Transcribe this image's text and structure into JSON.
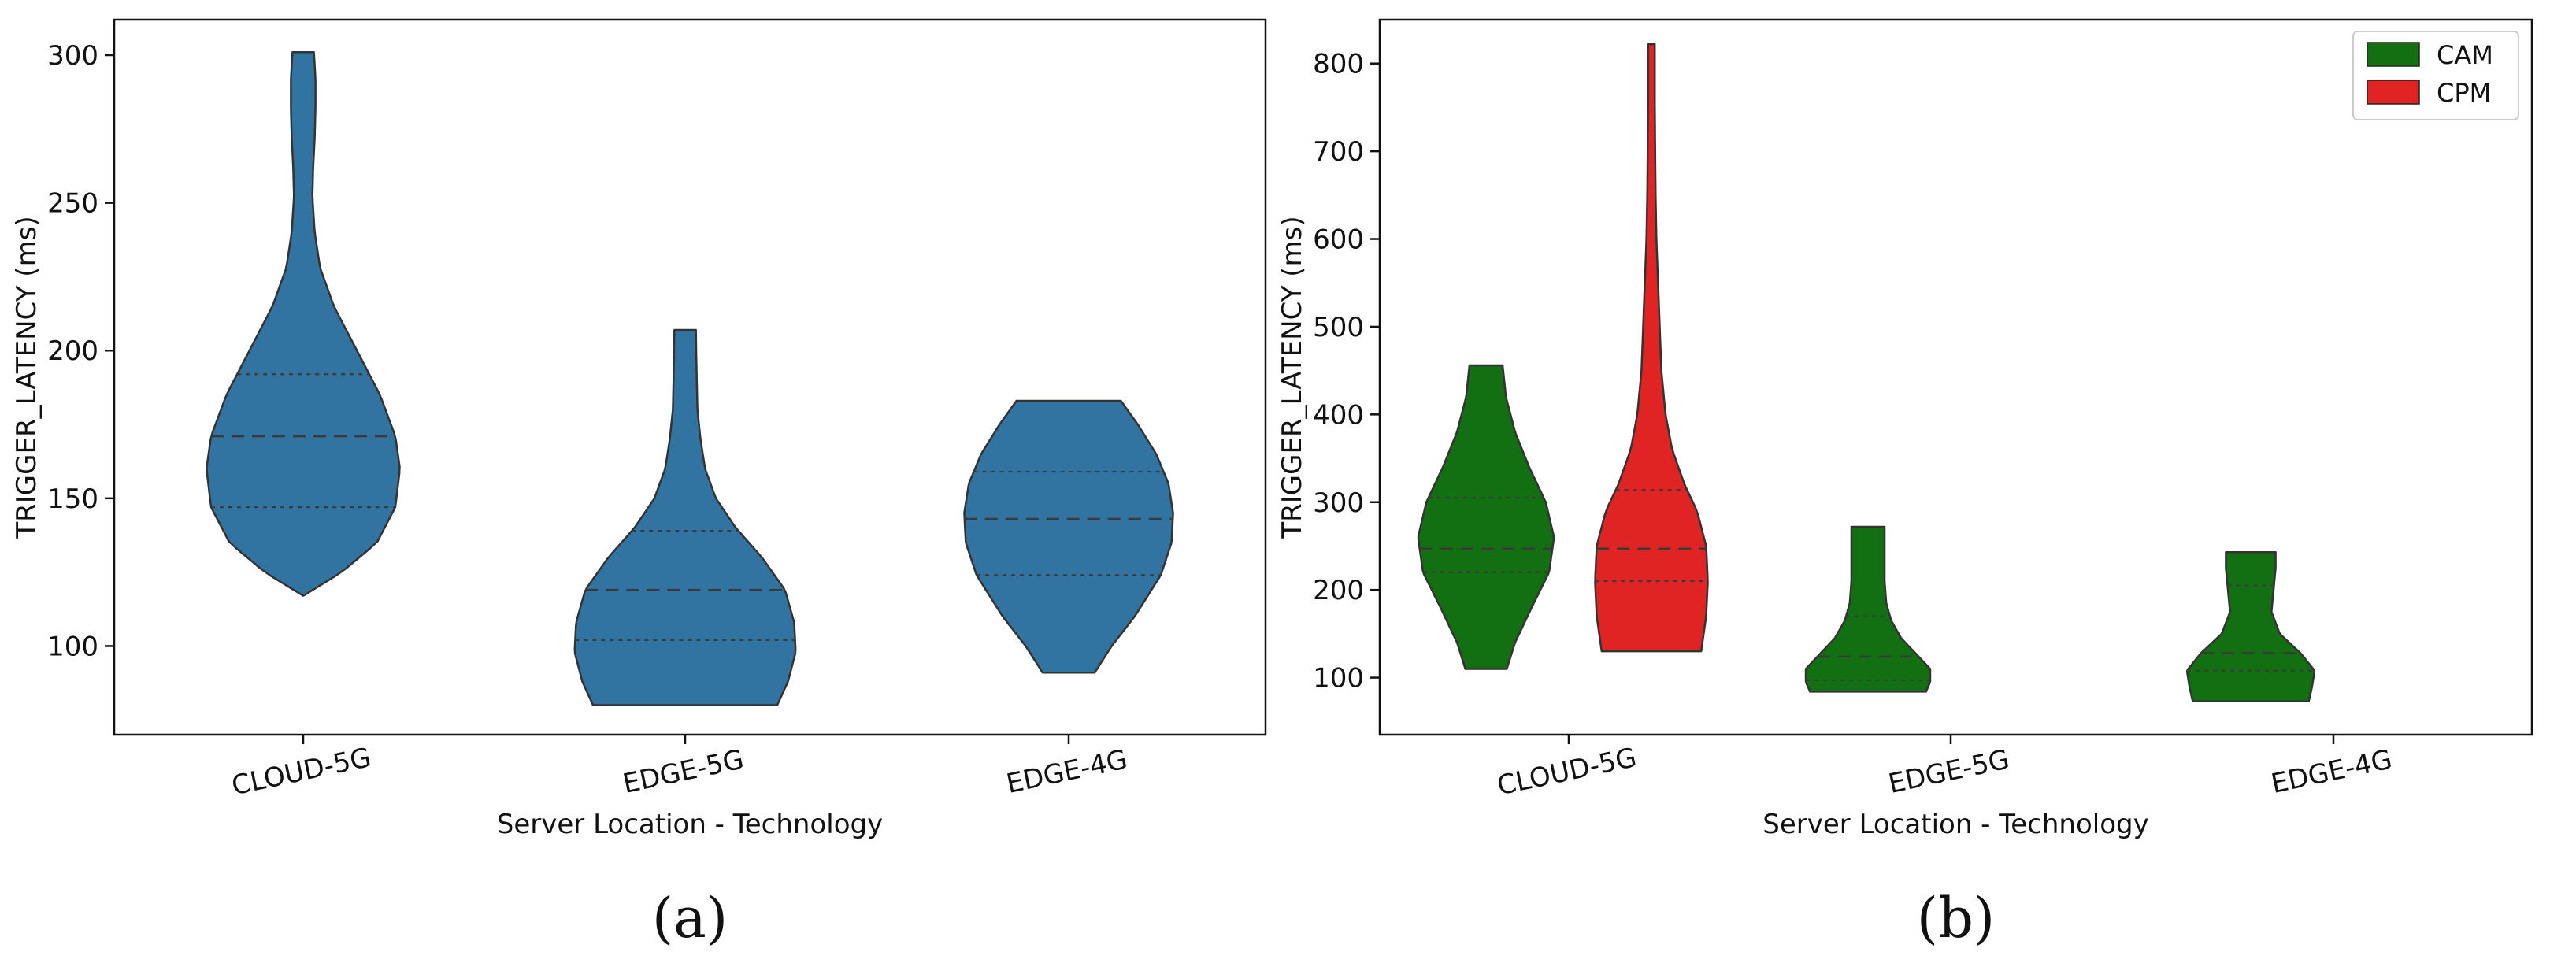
{
  "chart_data": [
    {
      "type": "violin",
      "panel_label": "(a)",
      "xlabel": "Server Location - Technology",
      "ylabel": "TRIGGER_LATENCY (ms)",
      "ylim": [
        70,
        312
      ],
      "yticks": [
        100,
        150,
        200,
        250,
        300
      ],
      "categories": [
        "CLOUD-5G",
        "EDGE-5G",
        "EDGE-4G"
      ],
      "series": [
        {
          "color": "#3274a1",
          "violins": [
            {
              "category": "CLOUD-5G",
              "min": 117,
              "max": 301,
              "q1": 147,
              "median": 171,
              "q3": 192,
              "profile": [
                [
                  117,
                  0.0
                ],
                [
                  125,
                  0.25
                ],
                [
                  135,
                  0.48
                ],
                [
                  147,
                  0.6
                ],
                [
                  160,
                  0.63
                ],
                [
                  171,
                  0.6
                ],
                [
                  185,
                  0.5
                ],
                [
                  200,
                  0.35
                ],
                [
                  215,
                  0.2
                ],
                [
                  228,
                  0.11
                ],
                [
                  240,
                  0.075
                ],
                [
                  252,
                  0.06
                ],
                [
                  262,
                  0.065
                ],
                [
                  272,
                  0.075
                ],
                [
                  282,
                  0.08
                ],
                [
                  292,
                  0.08
                ],
                [
                  301,
                  0.07
                ]
              ]
            },
            {
              "category": "EDGE-5G",
              "min": 80,
              "max": 207,
              "q1": 102,
              "median": 119,
              "q3": 139,
              "profile": [
                [
                  80,
                  0.6
                ],
                [
                  88,
                  0.67
                ],
                [
                  98,
                  0.72
                ],
                [
                  108,
                  0.71
                ],
                [
                  119,
                  0.65
                ],
                [
                  130,
                  0.5
                ],
                [
                  140,
                  0.33
                ],
                [
                  150,
                  0.2
                ],
                [
                  160,
                  0.13
                ],
                [
                  170,
                  0.1
                ],
                [
                  180,
                  0.08
                ],
                [
                  192,
                  0.075
                ],
                [
                  200,
                  0.072
                ],
                [
                  207,
                  0.07
                ]
              ]
            },
            {
              "category": "EDGE-4G",
              "min": 91,
              "max": 183,
              "q1": 124,
              "median": 143,
              "q3": 159,
              "profile": [
                [
                  91,
                  0.17
                ],
                [
                  100,
                  0.28
                ],
                [
                  110,
                  0.43
                ],
                [
                  124,
                  0.6
                ],
                [
                  135,
                  0.67
                ],
                [
                  145,
                  0.68
                ],
                [
                  155,
                  0.65
                ],
                [
                  165,
                  0.57
                ],
                [
                  175,
                  0.45
                ],
                [
                  183,
                  0.34
                ]
              ]
            }
          ]
        }
      ]
    },
    {
      "type": "violin",
      "panel_label": "(b)",
      "xlabel": "Server Location - Technology",
      "ylabel": "TRIGGER_LATENCY (ms)",
      "ylim": [
        35,
        850
      ],
      "yticks": [
        100,
        200,
        300,
        400,
        500,
        600,
        700,
        800
      ],
      "categories": [
        "CLOUD-5G",
        "EDGE-5G",
        "EDGE-4G"
      ],
      "legend": {
        "position": "top-right"
      },
      "series": [
        {
          "name": "CAM",
          "color": "#127012",
          "violins": [
            {
              "category": "CLOUD-5G",
              "min": 110,
              "max": 456,
              "q1": 220,
              "median": 247,
              "q3": 305,
              "profile": [
                [
                  110,
                  0.25
                ],
                [
                  140,
                  0.35
                ],
                [
                  180,
                  0.55
                ],
                [
                  220,
                  0.76
                ],
                [
                  260,
                  0.82
                ],
                [
                  300,
                  0.72
                ],
                [
                  340,
                  0.52
                ],
                [
                  380,
                  0.35
                ],
                [
                  420,
                  0.24
                ],
                [
                  456,
                  0.2
                ]
              ]
            },
            {
              "category": "EDGE-5G",
              "min": 84,
              "max": 272,
              "q1": 97,
              "median": 124,
              "q3": 170,
              "profile": [
                [
                  84,
                  0.7
                ],
                [
                  95,
                  0.75
                ],
                [
                  110,
                  0.75
                ],
                [
                  125,
                  0.6
                ],
                [
                  145,
                  0.4
                ],
                [
                  165,
                  0.28
                ],
                [
                  185,
                  0.22
                ],
                [
                  210,
                  0.2
                ],
                [
                  240,
                  0.2
                ],
                [
                  272,
                  0.2
                ]
              ]
            },
            {
              "category": "EDGE-4G",
              "min": 73,
              "max": 243,
              "q1": 108,
              "median": 128,
              "q3": 205,
              "profile": [
                [
                  73,
                  0.7
                ],
                [
                  90,
                  0.74
                ],
                [
                  108,
                  0.77
                ],
                [
                  128,
                  0.6
                ],
                [
                  150,
                  0.35
                ],
                [
                  175,
                  0.25
                ],
                [
                  205,
                  0.28
                ],
                [
                  225,
                  0.3
                ],
                [
                  243,
                  0.3
                ]
              ]
            }
          ]
        },
        {
          "name": "CPM",
          "color": "#e02424",
          "violins": [
            {
              "category": "CLOUD-5G",
              "min": 130,
              "max": 822,
              "q1": 210,
              "median": 247,
              "q3": 314,
              "profile": [
                [
                  130,
                  0.6
                ],
                [
                  170,
                  0.66
                ],
                [
                  210,
                  0.68
                ],
                [
                  250,
                  0.66
                ],
                [
                  290,
                  0.55
                ],
                [
                  320,
                  0.4
                ],
                [
                  360,
                  0.25
                ],
                [
                  400,
                  0.17
                ],
                [
                  450,
                  0.12
                ],
                [
                  500,
                  0.1
                ],
                [
                  550,
                  0.08
                ],
                [
                  600,
                  0.06
                ],
                [
                  650,
                  0.05
                ],
                [
                  700,
                  0.045
                ],
                [
                  760,
                  0.04
                ],
                [
                  822,
                  0.04
                ]
              ]
            }
          ]
        }
      ]
    }
  ]
}
